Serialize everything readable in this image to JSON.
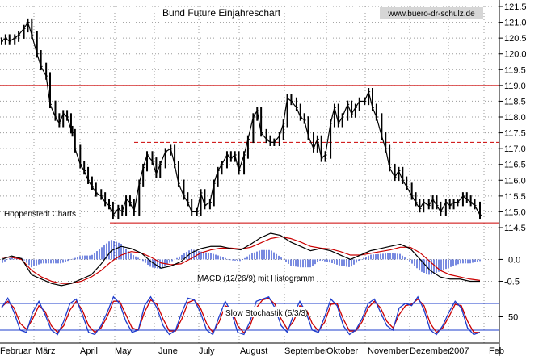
{
  "title": "Bund Future Einjahreschart",
  "website": "www.buero-dr-schulz.de",
  "source_label": "Hoppenstedt Charts",
  "colors": {
    "background": "#ffffff",
    "grid": "#9a9a9a",
    "price": "#000000",
    "level_line": "#cc0000",
    "macd_line": "#000000",
    "signal_line": "#cc0000",
    "histogram": "#1e3ccc",
    "stoch_k": "#1e3ccc",
    "stoch_d": "#cc0000",
    "stoch_band": "#1e3ccc"
  },
  "chart_data": [
    {
      "type": "line",
      "name": "price",
      "title": "Bund Future Einjahreschart",
      "months": [
        "Februar",
        "März",
        "April",
        "May",
        "June",
        "July",
        "August",
        "September",
        "Oktober",
        "November",
        "Dezember",
        "2007",
        "Feb"
      ],
      "ylim": [
        114.5,
        121.5
      ],
      "yticks": [
        114.5,
        115.0,
        115.5,
        116.0,
        116.5,
        117.0,
        117.5,
        118.0,
        118.5,
        119.0,
        119.5,
        120.0,
        120.5,
        121.0,
        121.5
      ],
      "y_tick_labels": [
        "114.5",
        "115.0",
        "115.5",
        "116.0",
        "116.5",
        "117.0",
        "117.5",
        "118.0",
        "118.5",
        "119.0",
        "119.5",
        "120.0",
        "120.5",
        "121.0",
        "121.5"
      ],
      "series": [
        {
          "x": [
            0,
            3,
            6,
            10,
            13,
            17,
            20,
            23,
            27,
            30,
            34,
            37,
            41,
            44,
            47,
            50,
            53,
            54,
            56,
            60,
            63,
            66,
            69,
            72,
            76,
            79,
            82,
            85,
            89,
            92,
            95,
            98,
            101,
            105,
            108,
            111,
            115,
            118,
            121,
            125,
            129,
            132,
            135,
            139,
            142,
            145,
            149,
            152,
            155,
            159,
            162,
            165,
            168,
            172,
            175,
            178,
            181,
            185,
            188,
            192,
            195,
            198,
            202,
            205,
            208,
            212,
            215,
            218,
            221,
            225,
            228,
            231,
            234,
            238,
            241,
            244,
            247,
            251,
            254,
            257,
            260,
            264,
            267,
            270,
            273,
            277,
            280,
            283,
            286,
            290,
            293,
            296,
            300,
            303,
            306,
            309,
            313,
            316,
            319,
            322,
            326,
            329,
            332,
            335,
            339,
            342,
            345,
            348,
            352,
            355,
            358,
            361,
            365
          ],
          "y": [
            120.4,
            120.5,
            120.4,
            120.5,
            120.6,
            120.8,
            121.0,
            120.6,
            120.0,
            119.6,
            119.3,
            118.4,
            118.0,
            117.8,
            118.1,
            118.0,
            117.6,
            117.5,
            117.0,
            116.5,
            116.3,
            116.0,
            115.8,
            115.6,
            115.5,
            115.3,
            115.2,
            114.9,
            115.1,
            115.0,
            115.4,
            115.3,
            115.0,
            115.9,
            116.4,
            116.8,
            116.6,
            116.2,
            116.5,
            116.9,
            117.0,
            116.5,
            115.9,
            115.5,
            115.3,
            115.0,
            115.0,
            115.6,
            115.2,
            115.3,
            115.9,
            116.3,
            116.5,
            116.8,
            116.7,
            116.8,
            116.3,
            116.8,
            117.3,
            118.0,
            118.2,
            117.5,
            117.3,
            117.2,
            117.2,
            117.4,
            117.8,
            118.6,
            118.5,
            118.3,
            118.0,
            117.9,
            117.4,
            117.0,
            117.3,
            116.7,
            116.8,
            117.8,
            118.3,
            117.8,
            118.0,
            118.4,
            118.1,
            118.3,
            118.5,
            118.5,
            118.8,
            118.3,
            118.0,
            117.4,
            117.0,
            116.4,
            116.1,
            116.3,
            116.0,
            115.8,
            115.5,
            115.3,
            115.1,
            115.3,
            115.2,
            115.4,
            115.2,
            115.0,
            115.3,
            115.2,
            115.3,
            115.3,
            115.5,
            115.4,
            115.3,
            115.2,
            114.9
          ]
        }
      ],
      "reference_lines": [
        119.0,
        117.2,
        114.65
      ]
    },
    {
      "type": "line",
      "name": "macd",
      "label": "MACD (12/26/9) mit Histogramm",
      "ylim": [
        -0.75,
        0.6
      ],
      "yticks": [
        0.0,
        -0.5
      ],
      "y_tick_labels": [
        "0.0",
        "-0.5"
      ],
      "macd": [
        0.0,
        0.08,
        0.02,
        -0.35,
        -0.45,
        -0.55,
        -0.6,
        -0.55,
        -0.45,
        -0.35,
        -0.1,
        0.2,
        0.3,
        0.25,
        0.15,
        -0.05,
        -0.2,
        -0.15,
        -0.05,
        0.15,
        0.25,
        0.3,
        0.3,
        0.25,
        0.22,
        0.35,
        0.5,
        0.6,
        0.55,
        0.4,
        0.3,
        0.2,
        0.25,
        0.2,
        0.1,
        0.0,
        0.1,
        0.2,
        0.25,
        0.3,
        0.35,
        0.25,
        0.0,
        -0.25,
        -0.4,
        -0.45,
        -0.45,
        -0.5,
        -0.5
      ],
      "signal": [
        0.05,
        0.05,
        0.0,
        -0.25,
        -0.4,
        -0.5,
        -0.55,
        -0.55,
        -0.5,
        -0.4,
        -0.25,
        -0.05,
        0.1,
        0.18,
        0.15,
        0.05,
        -0.08,
        -0.12,
        -0.1,
        0.02,
        0.15,
        0.22,
        0.26,
        0.26,
        0.24,
        0.28,
        0.38,
        0.48,
        0.52,
        0.48,
        0.4,
        0.3,
        0.26,
        0.24,
        0.18,
        0.1,
        0.1,
        0.14,
        0.18,
        0.22,
        0.28,
        0.28,
        0.15,
        -0.05,
        -0.25,
        -0.35,
        -0.4,
        -0.45,
        -0.48
      ]
    },
    {
      "type": "line",
      "name": "slow_stochastic",
      "label": "Slow Stochastik (5/3/3)",
      "ylim": [
        0,
        100
      ],
      "yticks": [
        50
      ],
      "y_tick_labels": [
        "50"
      ],
      "bands": [
        80,
        20
      ],
      "k": [
        70,
        92,
        60,
        20,
        15,
        60,
        85,
        55,
        20,
        10,
        40,
        80,
        90,
        55,
        15,
        10,
        30,
        60,
        95,
        80,
        40,
        15,
        20,
        75,
        95,
        70,
        30,
        10,
        20,
        60,
        92,
        88,
        60,
        20,
        10,
        50,
        85,
        60,
        15,
        10,
        40,
        85,
        90,
        95,
        70,
        30,
        15,
        55,
        85,
        60,
        20,
        15,
        50,
        90,
        75,
        30,
        10,
        20,
        45,
        80,
        90,
        60,
        30,
        20,
        70,
        80,
        75,
        95,
        65,
        20,
        10,
        30,
        60,
        85,
        70,
        25,
        10,
        15
      ],
      "d": [
        72,
        85,
        70,
        35,
        22,
        45,
        75,
        62,
        30,
        15,
        30,
        65,
        85,
        65,
        30,
        15,
        25,
        50,
        85,
        85,
        55,
        25,
        20,
        60,
        88,
        78,
        45,
        18,
        18,
        45,
        82,
        88,
        70,
        35,
        15,
        38,
        75,
        68,
        30,
        14,
        30,
        70,
        88,
        92,
        78,
        45,
        22,
        40,
        75,
        68,
        35,
        18,
        38,
        78,
        80,
        45,
        18,
        18,
        38,
        70,
        85,
        70,
        40,
        25,
        55,
        75,
        78,
        90,
        75,
        35,
        15,
        25,
        50,
        78,
        75,
        40,
        15,
        15
      ]
    }
  ]
}
